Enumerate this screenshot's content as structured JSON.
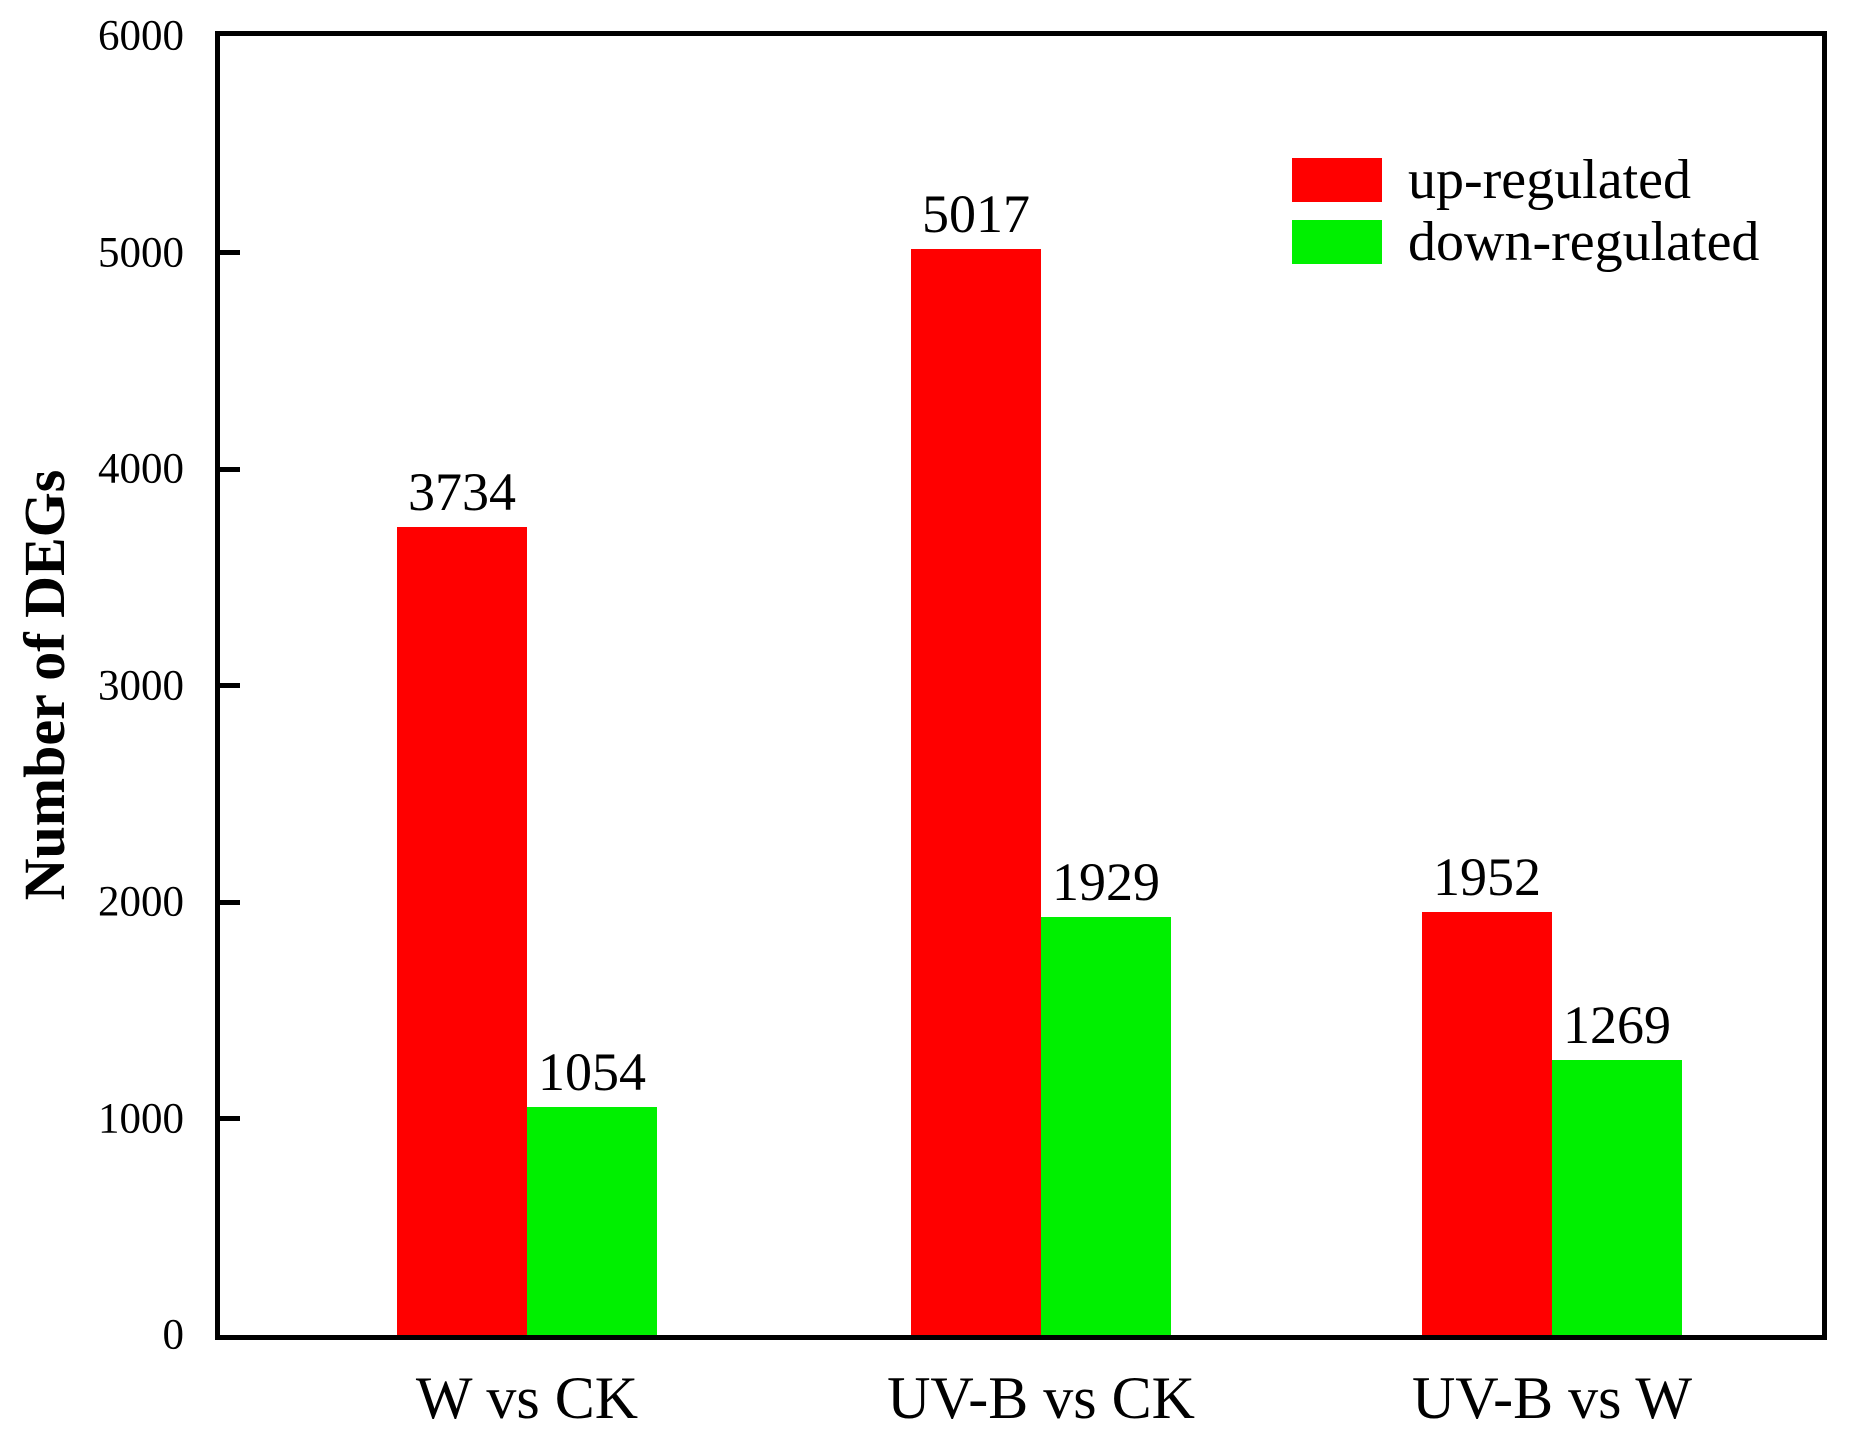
{
  "figure": {
    "background": "#ffffff",
    "text_color": "#000000",
    "axis_color": "#000000"
  },
  "chart_data": {
    "type": "bar",
    "title": "",
    "xlabel": "",
    "ylabel": "Number of DEGs",
    "categories": [
      "W vs CK",
      "UV-B vs CK",
      "UV-B vs W"
    ],
    "series": [
      {
        "name": "up-regulated",
        "color": "#ff0000",
        "values": [
          3734,
          5017,
          1952
        ]
      },
      {
        "name": "down-regulated",
        "color": "#00f000",
        "values": [
          1054,
          1929,
          1269
        ]
      }
    ],
    "bar_value_labels": [
      [
        "3734",
        "5017",
        "1952"
      ],
      [
        "1054",
        "1929",
        "1269"
      ]
    ],
    "ylim": [
      0,
      6000
    ],
    "yticks": [
      0,
      1000,
      2000,
      3000,
      4000,
      5000,
      6000
    ],
    "ytick_labels": [
      "0",
      "1000",
      "2000",
      "3000",
      "4000",
      "5000",
      "6000"
    ],
    "grid": false,
    "legend_position": "upper-right",
    "legend_entries": [
      "up-regulated",
      "down-regulated"
    ]
  }
}
